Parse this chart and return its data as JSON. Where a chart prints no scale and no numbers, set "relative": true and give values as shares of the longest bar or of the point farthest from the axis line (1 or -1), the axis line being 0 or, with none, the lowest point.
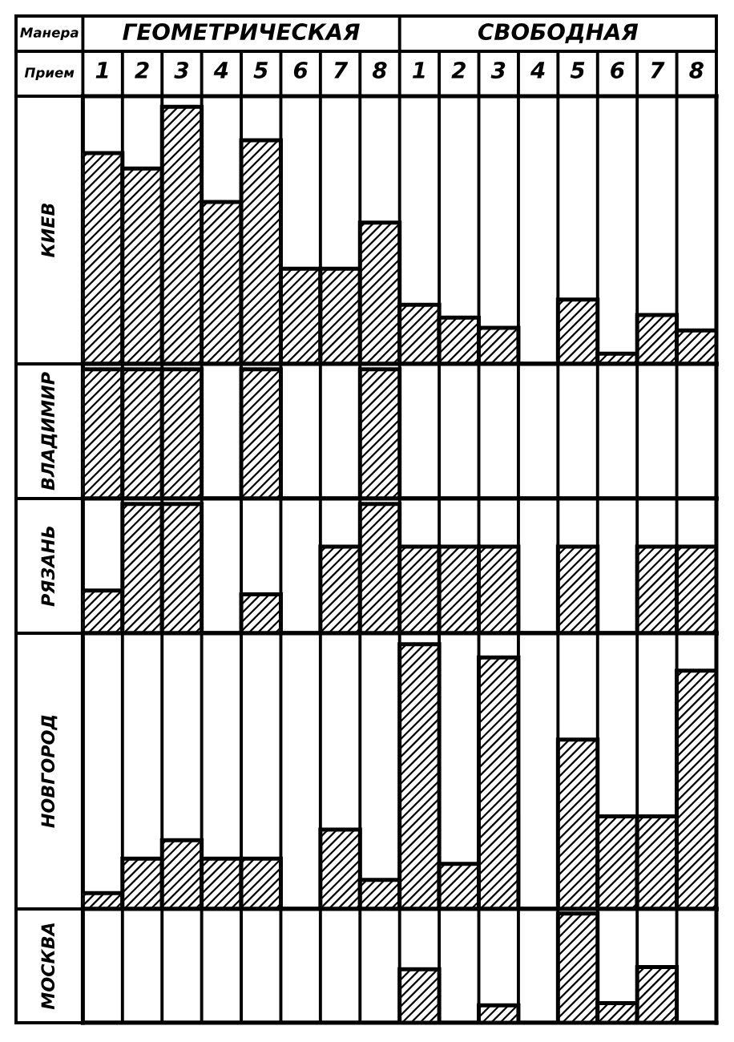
{
  "chart_data": [
    {
      "type": "bar",
      "xlabel": "Прием",
      "ylabel": "КИЕВ",
      "annotations": [
        "Манера",
        "ГЕОМЕТРИЧЕСКАЯ",
        "СВОБОДНАЯ"
      ],
      "categories": [
        "1",
        "2",
        "3",
        "4",
        "5",
        "6",
        "7",
        "8",
        "1",
        "2",
        "3",
        "4",
        "5",
        "6",
        "7",
        "8"
      ],
      "values": [
        0.82,
        0.76,
        1,
        0.63,
        0.87,
        0.37,
        0.37,
        0.55,
        0.23,
        0.18,
        0.14,
        0,
        0.25,
        0.04,
        0.19,
        0.13
      ],
      "color": "#000000",
      "relative": true,
      "grid": "x",
      "tick_labels": "x"
    },
    {
      "type": "bar",
      "ylabel": "ВЛАДИМИР",
      "categories": [
        "1",
        "2",
        "3",
        "4",
        "5",
        "6",
        "7",
        "8",
        "1",
        "2",
        "3",
        "4",
        "5",
        "6",
        "7",
        "8"
      ],
      "values": [
        1,
        1,
        1,
        0,
        1,
        0,
        0,
        1,
        0,
        0,
        0,
        0,
        0,
        0,
        0,
        0
      ],
      "color": "#000000",
      "relative": true,
      "grid": "x",
      "tick_labels": false
    },
    {
      "type": "bar",
      "ylabel": "РЯЗАНЬ",
      "categories": [
        "1",
        "2",
        "3",
        "4",
        "5",
        "6",
        "7",
        "8",
        "1",
        "2",
        "3",
        "4",
        "5",
        "6",
        "7",
        "8"
      ],
      "values": [
        0.33,
        1,
        1,
        0,
        0.3,
        0,
        0.67,
        1,
        0.67,
        0.67,
        0.67,
        0,
        0.67,
        0,
        0.67,
        0.67
      ],
      "color": "#000000",
      "relative": true,
      "grid": "x",
      "tick_labels": false
    },
    {
      "type": "bar",
      "ylabel": "НОВГОРОД",
      "categories": [
        "1",
        "2",
        "3",
        "4",
        "5",
        "6",
        "7",
        "8",
        "1",
        "2",
        "3",
        "4",
        "5",
        "6",
        "7",
        "8"
      ],
      "values": [
        0.06,
        0.19,
        0.26,
        0.19,
        0.19,
        0,
        0.3,
        0.11,
        1,
        0.17,
        0.95,
        0,
        0.64,
        0.35,
        0.35,
        0.9
      ],
      "color": "#000000",
      "relative": true,
      "grid": "x",
      "tick_labels": false
    },
    {
      "type": "bar",
      "ylabel": "МОСКВА",
      "categories": [
        "1",
        "2",
        "3",
        "4",
        "5",
        "6",
        "7",
        "8",
        "1",
        "2",
        "3",
        "4",
        "5",
        "6",
        "7",
        "8"
      ],
      "values": [
        0,
        0,
        0,
        0,
        0,
        0,
        0,
        0,
        0.49,
        0,
        0.16,
        0,
        1,
        0.18,
        0.51,
        0
      ],
      "color": "#000000",
      "relative": true,
      "grid": "x",
      "tick_labels": false
    }
  ]
}
